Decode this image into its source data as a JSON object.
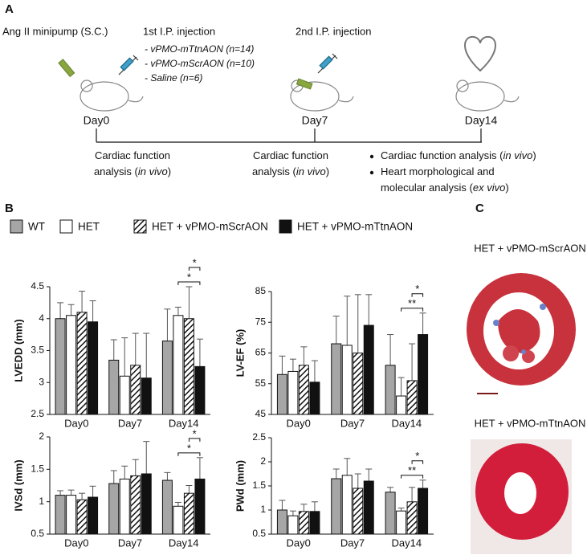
{
  "panel_a": {
    "label": "A",
    "headers": [
      "Ang II minipump (S.C.)",
      "1st I.P. injection",
      "2nd I.P. injection"
    ],
    "groups": [
      "- vPMO-mTtnAON (n=14)",
      "- vPMO-mScrAON (n=10)",
      "- Saline (n=6)"
    ],
    "days": [
      "Day0",
      "Day7",
      "Day14"
    ],
    "analyses": [
      [
        [
          "Cardiac function"
        ],
        [
          "analysis (",
          "in vivo",
          ")"
        ]
      ],
      [
        [
          "Cardiac function"
        ],
        [
          "analysis (",
          "in vivo",
          ")"
        ]
      ],
      [
        [
          "Cardiac function analysis (",
          "in vivo",
          ")"
        ],
        [
          "Heart morphological and"
        ],
        [
          "molecular analysis (",
          "ex vivo",
          ")"
        ]
      ]
    ]
  },
  "panel_b": {
    "label": "B"
  },
  "chart_data": [
    {
      "type": "bar",
      "ylabel": "LVEDD (mm)",
      "categories": [
        "Day0",
        "Day7",
        "Day14"
      ],
      "ylim": [
        2.5,
        4.5
      ],
      "yticks": [
        2.5,
        3,
        3.5,
        4,
        4.5
      ],
      "series": [
        {
          "name": "WT",
          "color": "#a6a6a6",
          "values": [
            4.0,
            3.35,
            3.65
          ],
          "errors": [
            0.25,
            0.32,
            0.5
          ]
        },
        {
          "name": "HET",
          "color": "#ffffff",
          "values": [
            4.05,
            3.1,
            4.05
          ],
          "errors": [
            0.17,
            0.6,
            0.13
          ]
        },
        {
          "name": "HET + vPMO-mScrAON",
          "color": "#ffffff",
          "hatch": true,
          "values": [
            4.1,
            3.27,
            4.0
          ],
          "errors": [
            0.33,
            0.5,
            0.5
          ]
        },
        {
          "name": "HET + vPMO-mTtnAON",
          "color": "#111111",
          "values": [
            3.95,
            3.07,
            3.25
          ],
          "errors": [
            0.33,
            0.7,
            0.43
          ]
        }
      ],
      "significance": [
        {
          "category": 2,
          "series": [
            1,
            3
          ],
          "label": "*"
        },
        {
          "category": 2,
          "series": [
            2,
            3
          ],
          "label": "*"
        }
      ]
    },
    {
      "type": "bar",
      "ylabel": "LV-EF (%)",
      "categories": [
        "Day0",
        "Day7",
        "Day14"
      ],
      "ylim": [
        45,
        85
      ],
      "yticks": [
        45,
        55,
        65,
        75,
        85
      ],
      "series": [
        {
          "color": "#a6a6a6",
          "values": [
            58,
            68,
            61
          ],
          "errors": [
            6,
            9,
            10
          ]
        },
        {
          "color": "#ffffff",
          "values": [
            59,
            67.5,
            51
          ],
          "errors": [
            4,
            16,
            6
          ]
        },
        {
          "color": "#ffffff",
          "hatch": true,
          "values": [
            61,
            65,
            56
          ],
          "errors": [
            6,
            19,
            12
          ]
        },
        {
          "color": "#111111",
          "values": [
            55.5,
            74,
            71
          ],
          "errors": [
            7,
            10,
            7
          ]
        }
      ],
      "significance": [
        {
          "category": 2,
          "series": [
            1,
            3
          ],
          "label": "**"
        },
        {
          "category": 2,
          "series": [
            2,
            3
          ],
          "label": "*"
        }
      ]
    },
    {
      "type": "bar",
      "ylabel": "IVSd (mm)",
      "categories": [
        "Day0",
        "Day7",
        "Day14"
      ],
      "ylim": [
        0.5,
        2
      ],
      "yticks": [
        0.5,
        1,
        1.5,
        2
      ],
      "series": [
        {
          "color": "#a6a6a6",
          "values": [
            1.1,
            1.28,
            1.33
          ],
          "errors": [
            0.07,
            0.2,
            0.12
          ]
        },
        {
          "color": "#ffffff",
          "values": [
            1.1,
            1.35,
            0.93
          ],
          "errors": [
            0.08,
            0.2,
            0.06
          ]
        },
        {
          "color": "#ffffff",
          "hatch": true,
          "values": [
            1.03,
            1.4,
            1.13
          ],
          "errors": [
            0.1,
            0.25,
            0.12
          ]
        },
        {
          "color": "#111111",
          "values": [
            1.07,
            1.43,
            1.35
          ],
          "errors": [
            0.17,
            0.5,
            0.33
          ]
        }
      ],
      "significance": [
        {
          "category": 2,
          "series": [
            1,
            3
          ],
          "label": "*"
        },
        {
          "category": 2,
          "series": [
            2,
            3
          ],
          "label": "*"
        }
      ]
    },
    {
      "type": "bar",
      "ylabel": "PWd (mm)",
      "categories": [
        "Day0",
        "Day7",
        "Day14"
      ],
      "ylim": [
        0.5,
        2.5
      ],
      "yticks": [
        0.5,
        1,
        1.5,
        2,
        2.5
      ],
      "series": [
        {
          "color": "#a6a6a6",
          "values": [
            1.0,
            1.65,
            1.37
          ],
          "errors": [
            0.2,
            0.2,
            0.1
          ]
        },
        {
          "color": "#ffffff",
          "values": [
            0.88,
            1.72,
            0.98
          ],
          "errors": [
            0.1,
            0.35,
            0.06
          ]
        },
        {
          "color": "#ffffff",
          "hatch": true,
          "values": [
            0.97,
            1.45,
            1.17
          ],
          "errors": [
            0.15,
            0.3,
            0.3
          ]
        },
        {
          "color": "#111111",
          "values": [
            0.97,
            1.6,
            1.45
          ],
          "errors": [
            0.2,
            0.25,
            0.17
          ]
        }
      ],
      "significance": [
        {
          "category": 2,
          "series": [
            1,
            3
          ],
          "label": "**"
        },
        {
          "category": 2,
          "series": [
            2,
            3
          ],
          "label": "*"
        }
      ]
    }
  ],
  "panel_c": {
    "label": "C",
    "captions": [
      "HET + vPMO-mScrAON",
      "HET + vPMO-mTtnAON"
    ]
  }
}
